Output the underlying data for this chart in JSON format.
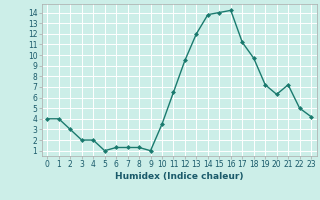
{
  "x": [
    0,
    1,
    2,
    3,
    4,
    5,
    6,
    7,
    8,
    9,
    10,
    11,
    12,
    13,
    14,
    15,
    16,
    17,
    18,
    19,
    20,
    21,
    22,
    23
  ],
  "y": [
    4,
    4,
    3,
    2,
    2,
    1,
    1.3,
    1.3,
    1.3,
    1,
    3.5,
    6.5,
    9.5,
    12,
    13.8,
    14,
    14.2,
    11.2,
    9.7,
    7.2,
    6.3,
    7.2,
    5,
    4.2
  ],
  "line_color": "#1a7a6e",
  "marker": "D",
  "marker_size": 2.0,
  "bg_color": "#cceee8",
  "grid_color": "#ffffff",
  "xlabel": "Humidex (Indice chaleur)",
  "ylim": [
    0.5,
    14.8
  ],
  "xlim": [
    -0.5,
    23.5
  ],
  "yticks": [
    1,
    2,
    3,
    4,
    5,
    6,
    7,
    8,
    9,
    10,
    11,
    12,
    13,
    14
  ],
  "xticks": [
    0,
    1,
    2,
    3,
    4,
    5,
    6,
    7,
    8,
    9,
    10,
    11,
    12,
    13,
    14,
    15,
    16,
    17,
    18,
    19,
    20,
    21,
    22,
    23
  ],
  "xtick_labels": [
    "0",
    "1",
    "2",
    "3",
    "4",
    "5",
    "6",
    "7",
    "8",
    "9",
    "10",
    "11",
    "12",
    "13",
    "14",
    "15",
    "16",
    "17",
    "18",
    "19",
    "20",
    "21",
    "22",
    "23"
  ],
  "font_color": "#1a5a6a",
  "tick_fontsize": 5.5,
  "xlabel_fontsize": 6.5
}
